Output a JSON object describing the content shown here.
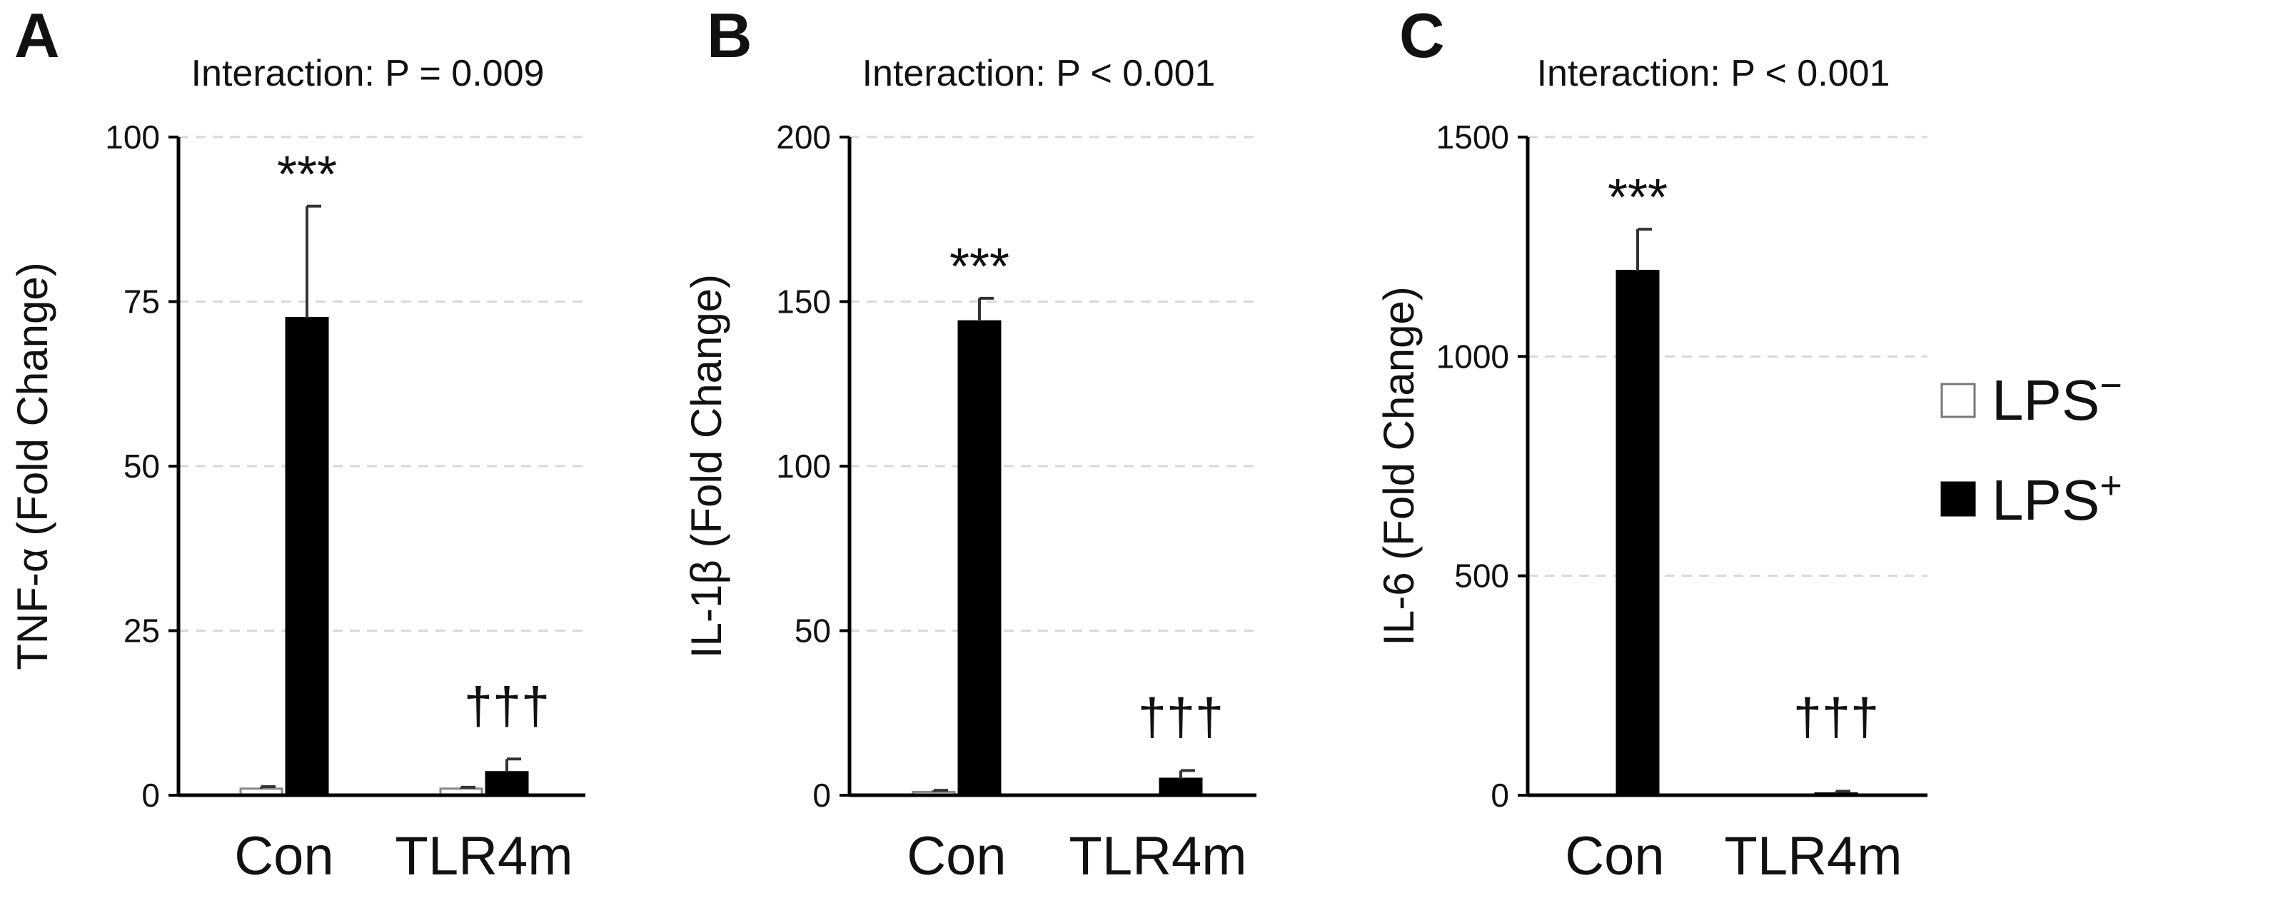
{
  "legend": {
    "items": [
      {
        "name": "LPS",
        "sup": "−",
        "color": "#ffffff"
      },
      {
        "name": "LPS",
        "sup": "+",
        "color": "#000000"
      }
    ]
  },
  "chart_data": [
    {
      "type": "bar",
      "panel": "A",
      "title": "Interaction: P = 0.009",
      "ylabel": "TNF-α (Fold Change)",
      "xlabel": "",
      "ylim": [
        0,
        100
      ],
      "yticks": [
        0,
        25,
        50,
        75,
        100
      ],
      "grid": true,
      "categories": [
        "Con",
        "TLR4m"
      ],
      "series": [
        {
          "name": "LPS−",
          "color": "#ffffff",
          "values": [
            1,
            1
          ],
          "errors": [
            0.3,
            0.2
          ]
        },
        {
          "name": "LPS+",
          "color": "#000000",
          "values": [
            72.5,
            3.5
          ],
          "errors": [
            17,
            2
          ]
        }
      ],
      "annotations": [
        {
          "text": "***",
          "category": "Con",
          "series": "LPS+"
        },
        {
          "text": "†††",
          "category": "TLR4m",
          "series": "LPS+"
        }
      ]
    },
    {
      "type": "bar",
      "panel": "B",
      "title": "Interaction: P < 0.001",
      "ylabel": "IL-1β (Fold Change)",
      "xlabel": "",
      "ylim": [
        0,
        200
      ],
      "yticks": [
        0,
        50,
        100,
        150,
        200
      ],
      "grid": true,
      "categories": [
        "Con",
        "TLR4m"
      ],
      "series": [
        {
          "name": "LPS−",
          "color": "#ffffff",
          "values": [
            1,
            0
          ],
          "errors": [
            0.5,
            0
          ]
        },
        {
          "name": "LPS+",
          "color": "#000000",
          "values": [
            144,
            5
          ],
          "errors": [
            7,
            2.5
          ]
        }
      ],
      "annotations": [
        {
          "text": "***",
          "category": "Con",
          "series": "LPS+"
        },
        {
          "text": "†††",
          "category": "TLR4m",
          "series": "LPS+"
        }
      ]
    },
    {
      "type": "bar",
      "panel": "C",
      "title": "Interaction: P < 0.001",
      "ylabel": "IL-6 (Fold Change)",
      "xlabel": "",
      "ylim": [
        0,
        1500
      ],
      "yticks": [
        0,
        500,
        1000,
        1500
      ],
      "grid": true,
      "categories": [
        "Con",
        "TLR4m"
      ],
      "series": [
        {
          "name": "LPS−",
          "color": "#ffffff",
          "values": [
            0,
            0
          ],
          "errors": [
            0,
            0
          ]
        },
        {
          "name": "LPS+",
          "color": "#000000",
          "values": [
            1195,
            4
          ],
          "errors": [
            95,
            5
          ]
        }
      ],
      "annotations": [
        {
          "text": "***",
          "category": "Con",
          "series": "LPS+"
        },
        {
          "text": "†††",
          "category": "TLR4m",
          "series": "LPS+"
        }
      ]
    }
  ]
}
